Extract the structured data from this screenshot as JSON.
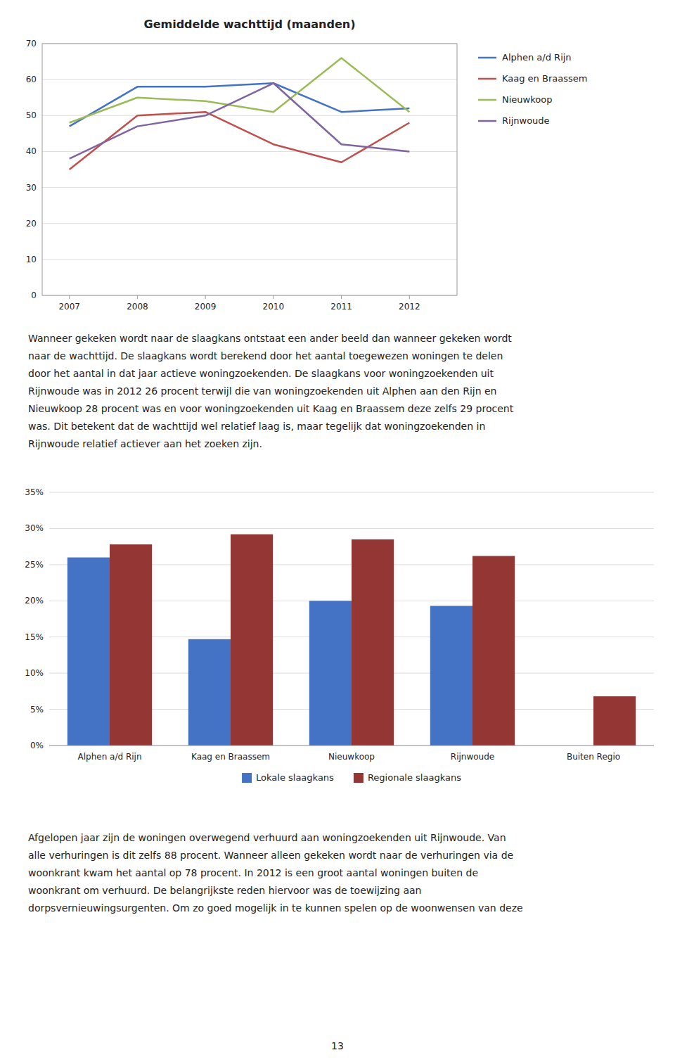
{
  "chart_data": [
    {
      "type": "line",
      "title": "Gemiddelde wachttijd (maanden)",
      "x": [
        2007,
        2008,
        2009,
        2010,
        2011,
        2012
      ],
      "series": [
        {
          "name": "Alphen a/d Rijn",
          "color": "#4472C4",
          "values": [
            47,
            58,
            58,
            59,
            51,
            52
          ]
        },
        {
          "name": "Kaag en Braassem",
          "color": "#C0504D",
          "values": [
            35,
            50,
            51,
            42,
            37,
            48
          ]
        },
        {
          "name": "Nieuwkoop",
          "color": "#9BBB59",
          "values": [
            48,
            55,
            54,
            51,
            66,
            51
          ]
        },
        {
          "name": "Rijnwoude",
          "color": "#8064A2",
          "values": [
            38,
            47,
            50,
            59,
            42,
            40
          ]
        }
      ],
      "xlim": [
        2006.6,
        2012.7
      ],
      "xticks": [
        2007,
        2008,
        2009,
        2010,
        2011,
        2012
      ],
      "ylim": [
        0,
        70
      ],
      "yticks": [
        0,
        10,
        20,
        30,
        40,
        50,
        60,
        70
      ],
      "grid": true,
      "legend": "right"
    },
    {
      "type": "bar",
      "categories": [
        "Alphen a/d Rijn",
        "Kaag en Braassem",
        "Nieuwkoop",
        "Rijnwoude",
        "Buiten Regio"
      ],
      "series": [
        {
          "name": "Lokale slaagkans",
          "color": "#4472C4",
          "values": [
            0.26,
            0.147,
            0.2,
            0.193,
            0.0
          ]
        },
        {
          "name": "Regionale slaagkans",
          "color": "#943634",
          "values": [
            0.278,
            0.292,
            0.285,
            0.262,
            0.068
          ]
        }
      ],
      "ylim": [
        0,
        0.35
      ],
      "yticks": [
        {
          "value": 0.0,
          "label": "0%"
        },
        {
          "value": 0.05,
          "label": "5%"
        },
        {
          "value": 0.1,
          "label": "10%"
        },
        {
          "value": 0.15,
          "label": "15%"
        },
        {
          "value": 0.2,
          "label": "20%"
        },
        {
          "value": 0.25,
          "label": "25%"
        },
        {
          "value": 0.3,
          "label": "30%"
        },
        {
          "value": 0.35,
          "label": "35%"
        }
      ],
      "grid": true,
      "legend": "bottom"
    }
  ],
  "paragraphs": [
    [
      "Wanneer gekeken wordt naar de slaagkans ontstaat een ander beeld dan wanneer gekeken wordt",
      "naar de wachttijd. De slaagkans wordt berekend door het aantal toegewezen woningen te delen",
      "door het aantal in dat jaar actieve woningzoekenden. De slaagkans voor woningzoekenden uit",
      "Rijnwoude was in 2012 26 procent terwijl die van woningzoekenden uit Alphen aan den Rijn en",
      "Nieuwkoop 28 procent was en voor woningzoekenden uit Kaag en Braassem deze zelfs 29 procent",
      "was. Dit betekent dat de wachttijd wel relatief laag is, maar tegelijk dat woningzoekenden in",
      "Rijnwoude relatief actiever aan het zoeken zijn."
    ],
    [
      "Afgelopen jaar zijn de woningen overwegend verhuurd aan woningzoekenden uit Rijnwoude. Van",
      "alle verhuringen is dit zelfs 88 procent. Wanneer alleen gekeken wordt naar de verhuringen via de",
      "woonkrant kwam het aantal op 78 procent. In 2012 is een groot aantal woningen buiten de",
      "woonkrant om verhuurd. De belangrijkste reden hiervoor was de toewijzing aan",
      "dorpsvernieuwingsurgenten. Om zo goed mogelijk in te kunnen spelen op de woonwensen van deze"
    ]
  ],
  "page_number": "13"
}
